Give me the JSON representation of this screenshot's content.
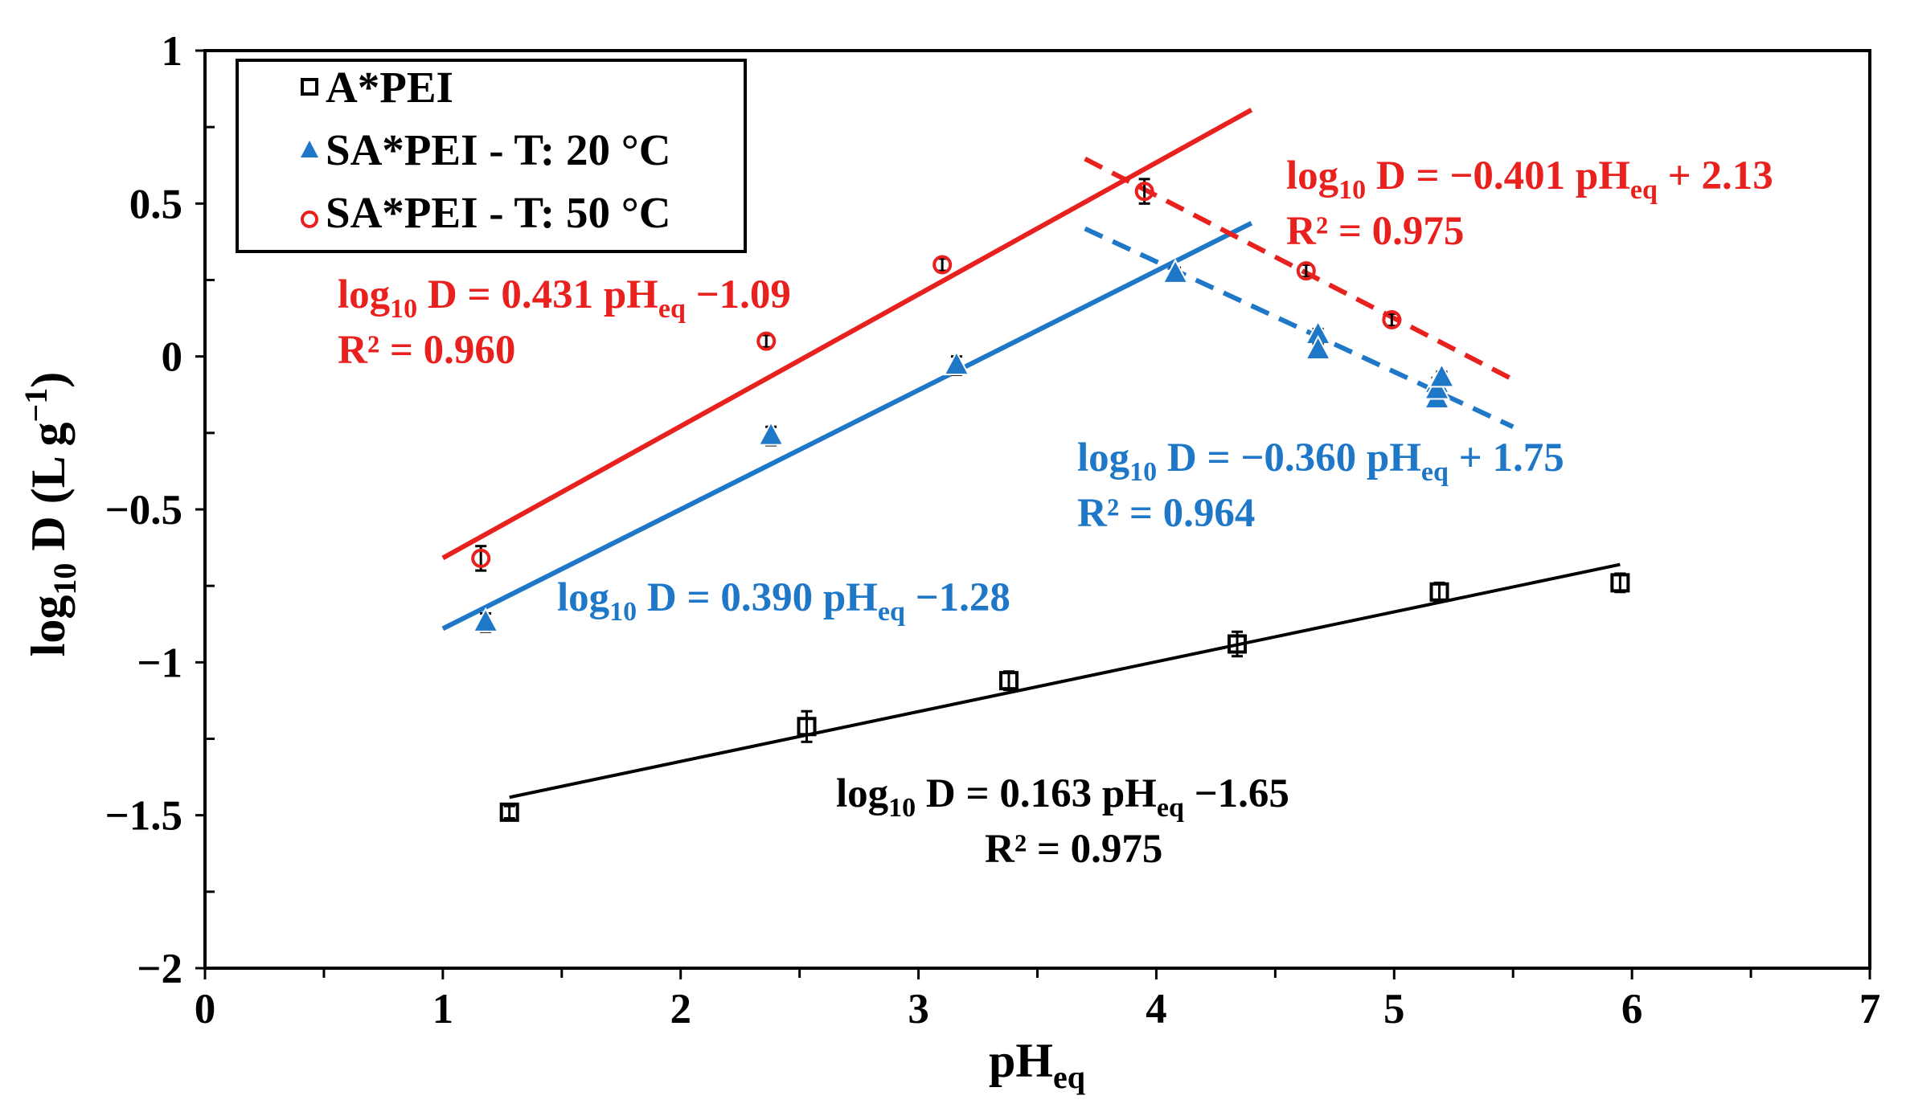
{
  "chart_data": {
    "type": "scatter",
    "xlabel": "pH",
    "xlabel_sub": "eq",
    "ylabel": "log",
    "ylabel_sub": "10",
    "ylabel_rest": " D (L g",
    "ylabel_sup": "−1",
    "ylabel_end": ")",
    "xlim": [
      0,
      7
    ],
    "ylim": [
      -2,
      1
    ],
    "x_ticks": [
      0,
      1,
      2,
      3,
      4,
      5,
      6,
      7
    ],
    "x_tick_labels": [
      "0",
      "1",
      "2",
      "3",
      "4",
      "5",
      "6",
      "7"
    ],
    "y_ticks": [
      -2,
      -1.5,
      -1,
      -0.5,
      0,
      0.5,
      1
    ],
    "y_tick_labels": [
      "−2",
      "−1.5",
      "−1",
      "−0.5",
      "0",
      "0.5",
      "1"
    ],
    "grid": false,
    "legend_position": "top-left",
    "series": [
      {
        "name": "A*PEI",
        "marker": "open-square",
        "color": "#000000",
        "x": [
          1.28,
          2.53,
          3.38,
          4.34,
          5.19,
          5.95
        ],
        "y": [
          -1.49,
          -1.21,
          -1.06,
          -0.94,
          -0.77,
          -0.74
        ],
        "yerr": [
          0.02,
          0.05,
          0.03,
          0.04,
          0.03,
          0.03
        ]
      },
      {
        "name": "SA*PEI - T: 20 °C",
        "marker": "triangle",
        "color": "#1f77c8",
        "x": [
          1.18,
          2.38,
          3.16,
          4.08,
          4.68,
          4.68,
          5.18,
          5.18,
          5.18,
          5.2
        ],
        "y": [
          -0.87,
          -0.26,
          -0.03,
          0.27,
          0.07,
          0.02,
          -0.09,
          -0.14,
          -0.11,
          -0.07
        ],
        "yerr": [
          0.03,
          0.03,
          0.03,
          0.02,
          0.02,
          0.02,
          0.02,
          0.02,
          0.02,
          0.02
        ]
      },
      {
        "name": "SA*PEI - T: 50 °C",
        "marker": "open-circle",
        "color": "#e8211e",
        "x": [
          1.16,
          2.36,
          3.1,
          3.95,
          4.63,
          4.99
        ],
        "y": [
          -0.66,
          0.05,
          0.3,
          0.54,
          0.28,
          0.12
        ],
        "yerr": [
          0.04,
          0.02,
          0.02,
          0.04,
          0.02,
          0.02
        ]
      }
    ],
    "fits": [
      {
        "name": "black-fit",
        "color": "#000000",
        "dashed": false,
        "slope": 0.163,
        "intercept": -1.65,
        "x_range": [
          1.28,
          5.95
        ]
      },
      {
        "name": "blue-rising-fit",
        "color": "#1f77c8",
        "dashed": false,
        "slope": 0.39,
        "intercept": -1.28,
        "x_range": [
          1.0,
          4.4
        ]
      },
      {
        "name": "red-rising-fit",
        "color": "#e8211e",
        "dashed": false,
        "slope": 0.431,
        "intercept": -1.09,
        "x_range": [
          1.0,
          4.4
        ]
      },
      {
        "name": "blue-falling-fit",
        "color": "#1f77c8",
        "dashed": true,
        "slope": -0.36,
        "intercept": 1.75,
        "x_range": [
          3.7,
          5.5
        ]
      },
      {
        "name": "red-falling-fit",
        "color": "#e8211e",
        "dashed": true,
        "slope": -0.401,
        "intercept": 2.13,
        "x_range": [
          3.7,
          5.5
        ]
      }
    ],
    "annotations": [
      {
        "name": "red-rising-eq",
        "color": "#e8211e",
        "line1": [
          "log",
          "10",
          " D = 0.431 pH",
          "eq",
          " −1.09"
        ],
        "line2": "R² = 0.960"
      },
      {
        "name": "red-falling-eq",
        "color": "#e8211e",
        "line1": [
          "log",
          "10",
          " D = −0.401 pH",
          "eq",
          " + 2.13"
        ],
        "line2": "R² = 0.975"
      },
      {
        "name": "blue-falling-eq",
        "color": "#1f77c8",
        "line1": [
          "log",
          "10",
          " D = −0.360 pH",
          "eq",
          " + 1.75"
        ],
        "line2": "R² = 0.964"
      },
      {
        "name": "blue-rising-eq",
        "color": "#1f77c8",
        "line1": [
          "log",
          "10",
          " D = 0.390 pH",
          "eq",
          " −1.28"
        ],
        "line2": ""
      },
      {
        "name": "black-eq",
        "color": "#000000",
        "line1": [
          "log",
          "10",
          " D = 0.163 pH",
          "eq",
          " −1.65"
        ],
        "line2": "R² = 0.975"
      }
    ]
  }
}
